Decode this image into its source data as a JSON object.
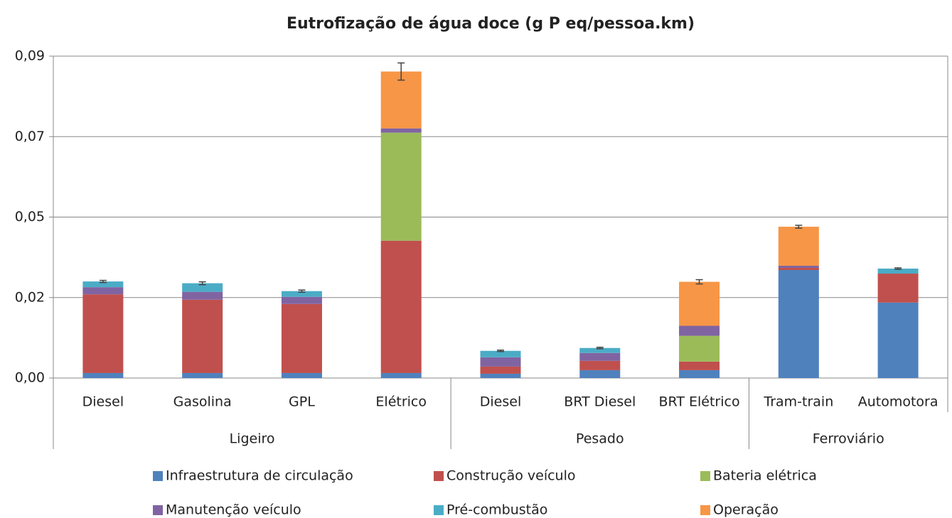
{
  "chart_data": {
    "type": "stacked_bar",
    "title": "Eutrofização de água doce (g P eq/pessoa.km)",
    "categories": [
      "Diesel",
      "Gasolina",
      "GPL",
      "Elétrico",
      "Diesel",
      "BRT Diesel",
      "BRT Elétrico",
      "Tram-train",
      "Automotora"
    ],
    "groups": [
      {
        "name": "Ligeiro",
        "span": 4
      },
      {
        "name": "Pesado",
        "span": 3
      },
      {
        "name": "Ferroviário",
        "span": 2
      }
    ],
    "series": [
      {
        "name": "Infraestrutura de circulação",
        "color": "#4f81bd",
        "values": [
          0.0014,
          0.0014,
          0.0014,
          0.0014,
          0.0012,
          0.0022,
          0.0022,
          0.0302,
          0.0211
        ]
      },
      {
        "name": "Construção veículo",
        "color": "#c0504d",
        "values": [
          0.022,
          0.0205,
          0.0193,
          0.037,
          0.002,
          0.0026,
          0.0024,
          0.0006,
          0.0081
        ]
      },
      {
        "name": "Bateria elétrica",
        "color": "#9bbb59",
        "values": [
          0,
          0,
          0,
          0.0302,
          0,
          0,
          0.0072,
          0,
          0
        ]
      },
      {
        "name": "Manutenção veículo",
        "color": "#8064a2",
        "values": [
          0.002,
          0.0022,
          0.002,
          0.0012,
          0.0026,
          0.0022,
          0.0028,
          0.0006,
          0
        ]
      },
      {
        "name": "Pré-combustão",
        "color": "#4bacc6",
        "values": [
          0.0016,
          0.0024,
          0.0016,
          0,
          0.0018,
          0.0014,
          0,
          0,
          0.0014
        ]
      },
      {
        "name": "Operação",
        "color": "#f79646",
        "values": [
          0,
          0,
          0,
          0.0159,
          0,
          0,
          0.0123,
          0.0109,
          0
        ]
      }
    ],
    "errors": [
      0.0003,
      0.0004,
      0.0003,
      0.0024,
      0.0002,
      0.0002,
      0.0006,
      0.0004,
      0.0002
    ],
    "ylim": [
      0,
      0.09
    ],
    "yticks": [
      {
        "value": 0,
        "label": "0,00"
      },
      {
        "value": 0.0225,
        "label": "0,02"
      },
      {
        "value": 0.045,
        "label": "0,05"
      },
      {
        "value": 0.0675,
        "label": "0,07"
      },
      {
        "value": 0.09,
        "label": "0,09"
      }
    ],
    "grid": true
  }
}
